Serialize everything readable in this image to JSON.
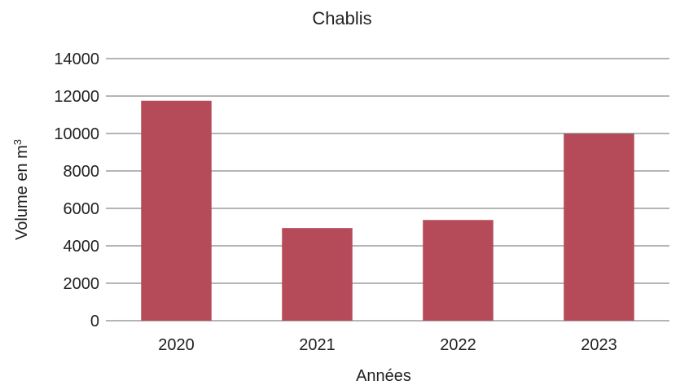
{
  "chart_data": {
    "type": "bar",
    "title": "Chablis",
    "xlabel": "Années",
    "ylabel": "Volume en m",
    "ylabel_superscript": "3",
    "categories": [
      "2020",
      "2021",
      "2022",
      "2023"
    ],
    "values": [
      11750,
      4950,
      5380,
      9980
    ],
    "ylim": [
      0,
      14000
    ],
    "yticks": [
      0,
      2000,
      4000,
      6000,
      8000,
      10000,
      12000,
      14000
    ],
    "grid": true,
    "legend": "none"
  },
  "colors": {
    "bar": "#b54b59",
    "grid": "#6b6b6b",
    "text": "#222222"
  }
}
